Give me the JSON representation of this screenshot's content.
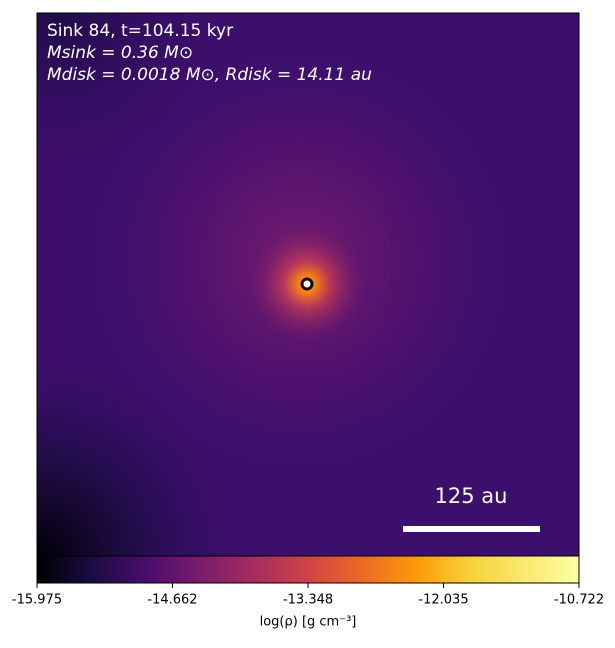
{
  "chart_data": {
    "type": "image",
    "annotations": [
      "Sink 84, t=104.15 kyr",
      "Msink = 0.36 M⊙",
      "Mdisk = 0.0018 M⊙, Rdisk = 14.11 au"
    ],
    "scale_bar_label": "125 au",
    "colorbar": {
      "label": "log(ρ) [g cm⁻³]",
      "lim": [
        -15.975,
        -10.722
      ],
      "ticks": [
        -15.975,
        -14.662,
        -13.348,
        -12.035,
        -10.722
      ],
      "colormap": "inferno"
    }
  }
}
